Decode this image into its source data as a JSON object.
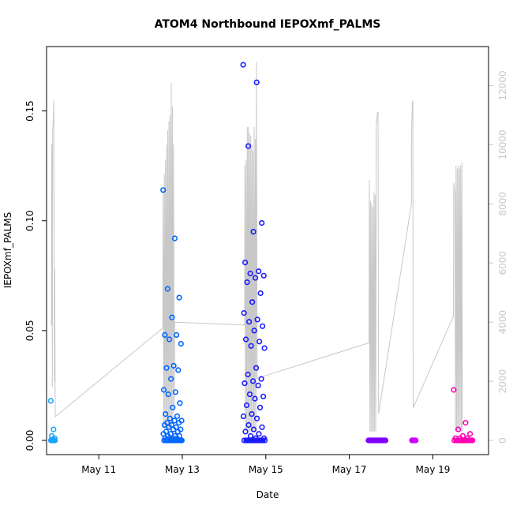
{
  "chart_data": {
    "type": "scatter",
    "title": "ATOM4 Northbound IEPOXmf_PALMS",
    "xlabel": "Date",
    "ylabel": "IEPOXmf_PALMS",
    "x_ticks": [
      "May 11",
      "May 13",
      "May 15",
      "May 17",
      "May 19"
    ],
    "xlim": [
      "2018-05-09T18:00",
      "2018-05-20T08:00"
    ],
    "ylim": [
      0,
      0.175
    ],
    "y_ticks": [
      "0.00",
      "0.05",
      "0.10",
      "0.15"
    ],
    "y2lim": [
      0,
      13000
    ],
    "y2_ticks": [
      "0",
      "2000",
      "4000",
      "6000",
      "8000",
      "10000",
      "12000"
    ],
    "colors": {
      "secondary_line": "#c8c8c8",
      "secondary_axis": "#c8c8c8",
      "point_gradient": [
        "#1aa3ff",
        "#0066ff",
        "#1a1aff",
        "#4000ff",
        "#8000ff",
        "#cc00ff",
        "#ff00b3"
      ]
    },
    "series": [
      {
        "kind": "points",
        "clusters": [
          {
            "x_start": "2018-05-09T20:24",
            "x_end": "2018-05-09T23:00",
            "color": "#1aa3ff",
            "values": [
              0.018,
              0.005,
              0.002,
              0.001,
              0.0005,
              0.0,
              0.0,
              0.0,
              0.0,
              0.0,
              0.0,
              0.0,
              0.0,
              0.0
            ]
          },
          {
            "x_start": "2018-05-12T13:00",
            "x_end": "2018-05-12T23:50",
            "color": "#0066ff",
            "values": [
              0.114,
              0.092,
              0.069,
              0.065,
              0.056,
              0.048,
              0.048,
              0.046,
              0.044,
              0.034,
              0.033,
              0.032,
              0.028,
              0.023,
              0.022,
              0.021,
              0.017,
              0.015,
              0.012,
              0.011,
              0.01,
              0.009,
              0.009,
              0.008,
              0.008,
              0.007,
              0.007,
              0.006,
              0.006,
              0.005,
              0.005,
              0.004,
              0.004,
              0.003,
              0.003,
              0.002,
              0.002,
              0.002,
              0.001,
              0.001,
              0.001,
              0.001,
              0.0,
              0.0,
              0.0,
              0.0,
              0.0,
              0.0,
              0.0,
              0.0,
              0.0,
              0.0,
              0.0,
              0.0,
              0.0,
              0.0,
              0.0,
              0.0,
              0.0,
              0.0
            ]
          },
          {
            "x_start": "2018-05-14T11:00",
            "x_end": "2018-05-14T23:30",
            "color": "#1a1aff",
            "values": [
              0.171,
              0.163,
              0.134,
              0.099,
              0.095,
              0.081,
              0.077,
              0.076,
              0.075,
              0.074,
              0.072,
              0.067,
              0.063,
              0.058,
              0.055,
              0.054,
              0.052,
              0.05,
              0.046,
              0.045,
              0.043,
              0.042,
              0.033,
              0.03,
              0.028,
              0.027,
              0.026,
              0.025,
              0.021,
              0.02,
              0.019,
              0.016,
              0.015,
              0.012,
              0.011,
              0.01,
              0.007,
              0.006,
              0.005,
              0.004,
              0.003,
              0.002,
              0.001,
              0.001,
              0.0,
              0.0,
              0.0,
              0.0,
              0.0,
              0.0,
              0.0,
              0.0,
              0.0,
              0.0,
              0.0,
              0.0,
              0.0,
              0.0,
              0.0,
              0.0
            ]
          },
          {
            "x_start": "2018-05-17T11:00",
            "x_end": "2018-05-17T21:00",
            "color": "#8000ff",
            "values": [
              0.0,
              0.0,
              0.0,
              0.0,
              0.0,
              0.0,
              0.0,
              0.0,
              0.0,
              0.0,
              0.0,
              0.0,
              0.0,
              0.0,
              0.0,
              0.0,
              0.0,
              0.0,
              0.0,
              0.0,
              0.0,
              0.0,
              0.0,
              0.0,
              0.0,
              0.0,
              0.0,
              0.0,
              0.0,
              0.0
            ]
          },
          {
            "x_start": "2018-05-18T12:00",
            "x_end": "2018-05-18T14:30",
            "color": "#cc00ff",
            "values": [
              0.0,
              0.0,
              0.0,
              0.0,
              0.0,
              0.0,
              0.0,
              0.0
            ]
          },
          {
            "x_start": "2018-05-19T12:00",
            "x_end": "2018-05-19T23:00",
            "color": "#ff00b3",
            "values": [
              0.023,
              0.008,
              0.005,
              0.003,
              0.002,
              0.001,
              0.001,
              0.001,
              0.0,
              0.0,
              0.0,
              0.0,
              0.0,
              0.0,
              0.0,
              0.0,
              0.0,
              0.0,
              0.0,
              0.0,
              0.0,
              0.0,
              0.0,
              0.0,
              0.0,
              0.0
            ]
          }
        ]
      },
      {
        "kind": "line",
        "axis": "right",
        "points": [
          [
            "2018-05-09T20:50",
            3900
          ],
          [
            "2018-05-09T21:00",
            10000
          ],
          [
            "2018-05-09T21:10",
            10000
          ],
          [
            "2018-05-09T21:20",
            1800
          ],
          [
            "2018-05-09T21:30",
            10500
          ],
          [
            "2018-05-09T21:50",
            10800
          ],
          [
            "2018-05-09T22:10",
            11500
          ],
          [
            "2018-05-09T22:30",
            2000
          ],
          [
            "2018-05-09T22:40",
            5800
          ],
          [
            "2018-05-09T23:00",
            800
          ],
          [
            "2018-05-12T12:50",
            3800
          ],
          [
            "2018-05-12T13:00",
            8500
          ],
          [
            "2018-05-12T13:20",
            400
          ],
          [
            "2018-05-12T13:40",
            9000
          ],
          [
            "2018-05-12T14:00",
            400
          ],
          [
            "2018-05-12T14:20",
            9500
          ],
          [
            "2018-05-12T14:40",
            400
          ],
          [
            "2018-05-12T15:00",
            10000
          ],
          [
            "2018-05-12T15:20",
            400
          ],
          [
            "2018-05-12T15:40",
            10500
          ],
          [
            "2018-05-12T16:00",
            400
          ],
          [
            "2018-05-12T16:20",
            10800
          ],
          [
            "2018-05-12T16:40",
            400
          ],
          [
            "2018-05-12T17:00",
            11000
          ],
          [
            "2018-05-12T17:20",
            400
          ],
          [
            "2018-05-12T17:40",
            12100
          ],
          [
            "2018-05-12T18:00",
            400
          ],
          [
            "2018-05-12T18:20",
            11300
          ],
          [
            "2018-05-12T18:40",
            600
          ],
          [
            "2018-05-12T19:00",
            10000
          ],
          [
            "2018-05-12T19:20",
            1000
          ],
          [
            "2018-05-12T19:40",
            4000
          ],
          [
            "2018-05-14T11:50",
            3900
          ],
          [
            "2018-05-14T12:00",
            9300
          ],
          [
            "2018-05-14T12:20",
            300
          ],
          [
            "2018-05-14T12:40",
            9500
          ],
          [
            "2018-05-14T13:00",
            300
          ],
          [
            "2018-05-14T13:20",
            10600
          ],
          [
            "2018-05-14T13:40",
            300
          ],
          [
            "2018-05-14T14:00",
            10600
          ],
          [
            "2018-05-14T14:20",
            300
          ],
          [
            "2018-05-14T14:40",
            10400
          ],
          [
            "2018-05-14T15:00",
            300
          ],
          [
            "2018-05-14T15:20",
            10300
          ],
          [
            "2018-05-14T15:40",
            300
          ],
          [
            "2018-05-14T16:00",
            10000
          ],
          [
            "2018-05-14T16:20",
            300
          ],
          [
            "2018-05-14T16:40",
            9800
          ],
          [
            "2018-05-14T17:00",
            300
          ],
          [
            "2018-05-14T17:20",
            10600
          ],
          [
            "2018-05-14T17:40",
            300
          ],
          [
            "2018-05-14T18:00",
            10200
          ],
          [
            "2018-05-14T18:20",
            300
          ],
          [
            "2018-05-14T18:40",
            12800
          ],
          [
            "2018-05-14T19:00",
            2100
          ],
          [
            "2018-05-17T11:20",
            3300
          ],
          [
            "2018-05-17T11:30",
            8800
          ],
          [
            "2018-05-17T11:50",
            300
          ],
          [
            "2018-05-17T12:10",
            8100
          ],
          [
            "2018-05-17T12:30",
            300
          ],
          [
            "2018-05-17T12:50",
            8000
          ],
          [
            "2018-05-17T13:10",
            300
          ],
          [
            "2018-05-17T13:30",
            7900
          ],
          [
            "2018-05-17T13:50",
            300
          ],
          [
            "2018-05-17T14:10",
            8400
          ],
          [
            "2018-05-17T14:30",
            300
          ],
          [
            "2018-05-17T14:50",
            8300
          ],
          [
            "2018-05-17T15:10",
            300
          ],
          [
            "2018-05-17T15:30",
            10800
          ],
          [
            "2018-05-17T15:50",
            10800
          ],
          [
            "2018-05-17T16:10",
            11100
          ],
          [
            "2018-05-17T16:30",
            11100
          ],
          [
            "2018-05-17T16:50",
            900
          ],
          [
            "2018-05-18T11:40",
            8000
          ],
          [
            "2018-05-18T11:50",
            10500
          ],
          [
            "2018-05-18T12:10",
            11400
          ],
          [
            "2018-05-18T12:30",
            11500
          ],
          [
            "2018-05-18T12:40",
            1100
          ],
          [
            "2018-05-19T11:50",
            4200
          ],
          [
            "2018-05-19T12:00",
            8700
          ],
          [
            "2018-05-19T12:20",
            8500
          ],
          [
            "2018-05-19T12:40",
            8300
          ],
          [
            "2018-05-19T13:00",
            300
          ],
          [
            "2018-05-19T13:20",
            9300
          ],
          [
            "2018-05-19T13:40",
            300
          ],
          [
            "2018-05-19T14:00",
            9200
          ],
          [
            "2018-05-19T14:20",
            300
          ],
          [
            "2018-05-19T14:40",
            9300
          ],
          [
            "2018-05-19T15:00",
            300
          ],
          [
            "2018-05-19T15:20",
            9200
          ],
          [
            "2018-05-19T15:40",
            300
          ],
          [
            "2018-05-19T16:00",
            9300
          ],
          [
            "2018-05-19T16:20",
            300
          ],
          [
            "2018-05-19T16:40",
            9400
          ],
          [
            "2018-05-19T17:00",
            300
          ]
        ]
      }
    ]
  }
}
